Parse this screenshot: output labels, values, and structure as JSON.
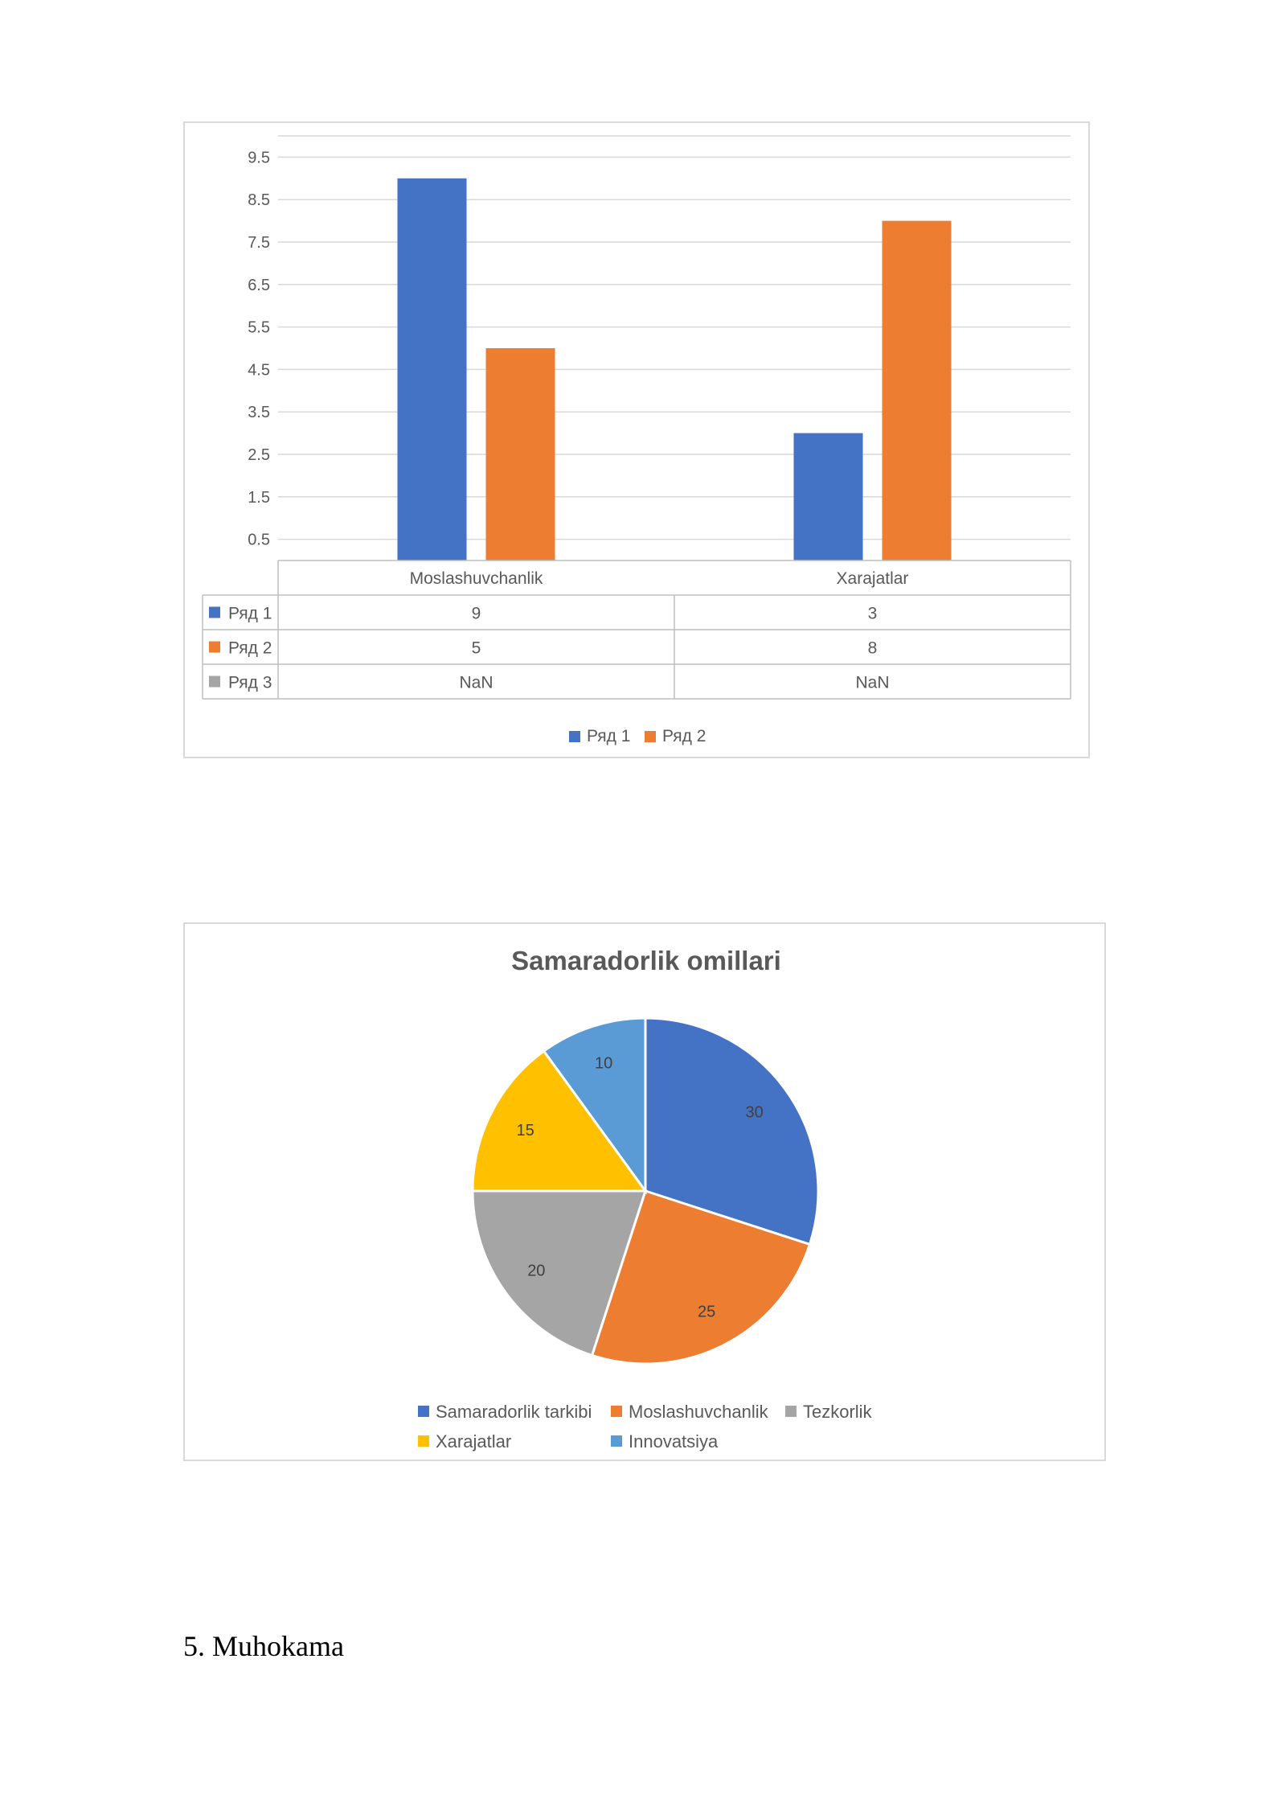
{
  "bar_chart": {
    "chart_data": {
      "type": "bar",
      "categories": [
        "Moslashuvchanlik",
        "Xarajatlar"
      ],
      "series": [
        {
          "name": "Ряд 1",
          "values": [
            9,
            3
          ],
          "table_values": [
            "9",
            "3"
          ],
          "color": "#4472C4",
          "plotted": true
        },
        {
          "name": "Ряд 2",
          "values": [
            5,
            8
          ],
          "table_values": [
            "5",
            "8"
          ],
          "color": "#ED7D31",
          "plotted": true
        },
        {
          "name": "Ряд 3",
          "values": [
            null,
            null
          ],
          "table_values": [
            "NaN",
            "NaN"
          ],
          "color": "#A5A5A5",
          "plotted": false
        }
      ],
      "y_ticks": [
        "9.5",
        "8.5",
        "7.5",
        "6.5",
        "5.5",
        "4.5",
        "3.5",
        "2.5",
        "1.5",
        "0.5"
      ],
      "ylim": [
        0,
        10
      ],
      "grid": true,
      "data_table": true,
      "legend": "bottom",
      "legend_entries": [
        "Ряд 1",
        "Ряд 2"
      ]
    }
  },
  "pie_chart": {
    "chart_data": {
      "type": "pie",
      "title": "Samaradorlik omillari",
      "labels": [
        "Samaradorlik tarkibi",
        "Moslashuvchanlik",
        "Tezkorlik",
        "Xarajatlar",
        "Innovatsiya"
      ],
      "values": [
        30,
        25,
        20,
        15,
        10
      ],
      "value_labels": [
        "30",
        "25",
        "20",
        "15",
        "10"
      ],
      "colors": [
        "#4472C4",
        "#ED7D31",
        "#A5A5A5",
        "#FFC000",
        "#5B9BD5"
      ],
      "legend": "bottom"
    }
  },
  "section_heading": "5. Muhokama"
}
